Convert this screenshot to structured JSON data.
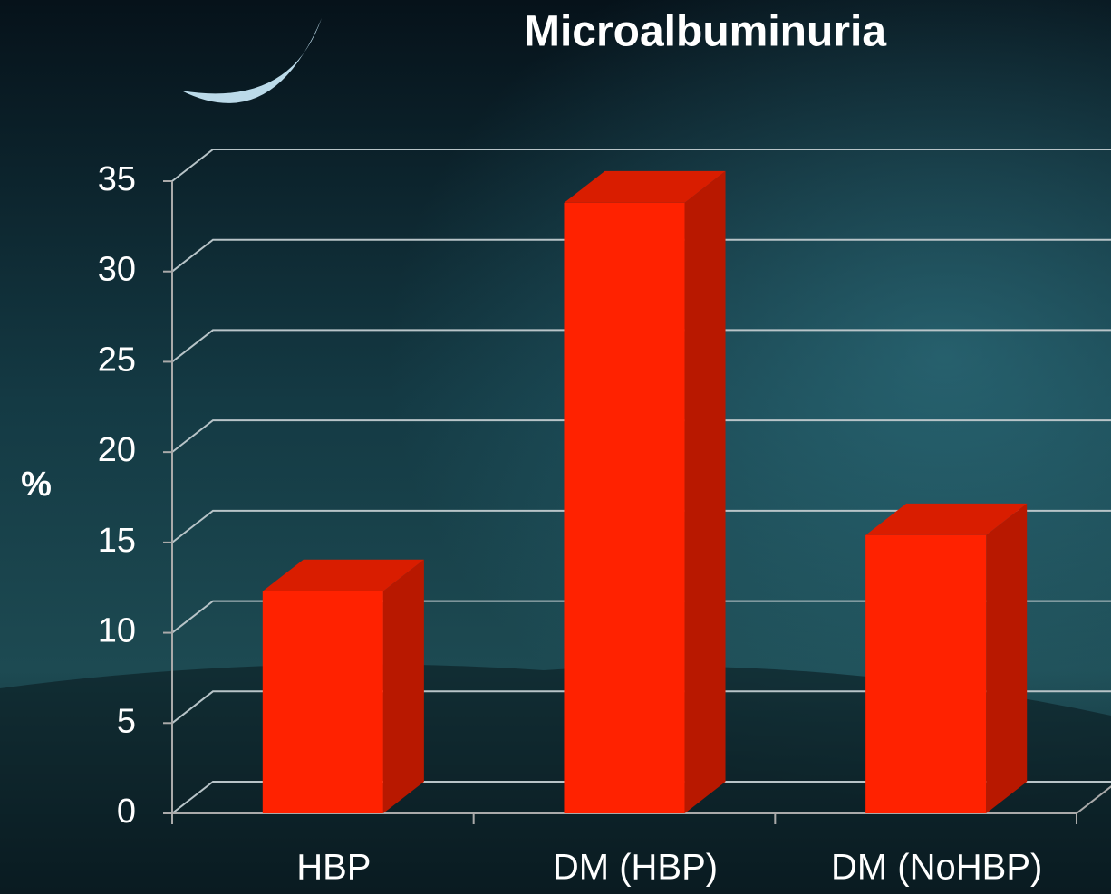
{
  "chart_data": {
    "type": "bar3d",
    "title": "Microalbuminuria",
    "y_label": "%",
    "categories": [
      "HBP",
      "DM (HBP)",
      "DM (NoHBP)"
    ],
    "values": [
      12.3,
      33.8,
      15.4
    ],
    "color": "#ff2200",
    "ylim": [
      0,
      35
    ],
    "yticks": [
      0,
      5,
      10,
      15,
      20,
      25,
      30,
      35
    ],
    "grid": true
  }
}
